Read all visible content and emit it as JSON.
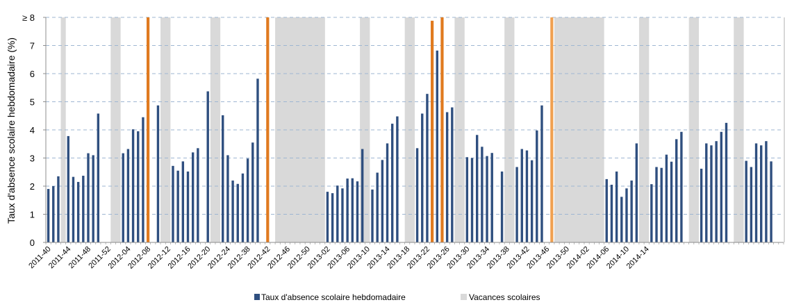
{
  "chart_data": {
    "type": "bar",
    "ylabel": "Taux d'absence scolaire hebdomadaire (%)",
    "ylim": [
      0,
      8
    ],
    "yticks": [
      "0",
      "1",
      "2",
      "3",
      "4",
      "5",
      "6",
      "7",
      "≥ 8"
    ],
    "grid": true,
    "legend_position": "bottom",
    "legend": {
      "rate": "Taux d'absence scolaire hebdomadaire",
      "vacation": "Vacances scolaires"
    },
    "x_labels": [
      "2011-40",
      "2011-44",
      "2011-48",
      "2011-52",
      "2012-04",
      "2012-08",
      "2012-12",
      "2012-16",
      "2012-20",
      "2012-24",
      "2012-38",
      "2012-42",
      "2012-46",
      "2012-50",
      "2013-02",
      "2013-06",
      "2013-10",
      "2013-14",
      "2013-18",
      "2013-22",
      "2013-26",
      "2013-30",
      "2013-34",
      "2013-38",
      "2013-42",
      "2013-46",
      "2013-50",
      "2014-02",
      "2014-06",
      "2014-10",
      "2014-14"
    ],
    "colors": {
      "rate": "#2F4F7F",
      "vacation": "#D9D9D9",
      "highlight": "#E07A1F",
      "highlight_light": "#F0A050",
      "grid": "#9EB6D2"
    },
    "vacation_spans": [
      [
        3,
        3
      ],
      [
        13,
        14
      ],
      [
        23,
        24
      ],
      [
        33,
        34
      ],
      [
        46,
        55
      ],
      [
        63,
        64
      ],
      [
        72,
        73
      ],
      [
        82,
        83
      ],
      [
        92,
        93
      ],
      [
        102,
        111
      ],
      [
        119,
        120
      ],
      [
        129,
        130
      ],
      [
        138,
        139
      ],
      [
        148,
        149
      ]
    ],
    "bars": [
      {
        "i": 0,
        "v": 1.9
      },
      {
        "i": 1,
        "v": 2.0
      },
      {
        "i": 2,
        "v": 2.35
      },
      {
        "i": 4,
        "v": 3.78
      },
      {
        "i": 5,
        "v": 2.33
      },
      {
        "i": 6,
        "v": 2.15
      },
      {
        "i": 7,
        "v": 2.37
      },
      {
        "i": 8,
        "v": 3.17
      },
      {
        "i": 9,
        "v": 3.1
      },
      {
        "i": 10,
        "v": 4.58
      },
      {
        "i": 15,
        "v": 3.17
      },
      {
        "i": 16,
        "v": 3.32
      },
      {
        "i": 17,
        "v": 4.02
      },
      {
        "i": 18,
        "v": 3.95
      },
      {
        "i": 19,
        "v": 4.45
      },
      {
        "i": 20,
        "v": 8,
        "c": "highlight"
      },
      {
        "i": 22,
        "v": 4.87
      },
      {
        "i": 25,
        "v": 2.72
      },
      {
        "i": 26,
        "v": 2.55
      },
      {
        "i": 27,
        "v": 2.88
      },
      {
        "i": 28,
        "v": 2.52
      },
      {
        "i": 29,
        "v": 3.2
      },
      {
        "i": 30,
        "v": 3.35
      },
      {
        "i": 32,
        "v": 5.37
      },
      {
        "i": 35,
        "v": 4.52
      },
      {
        "i": 36,
        "v": 3.1
      },
      {
        "i": 37,
        "v": 2.2
      },
      {
        "i": 38,
        "v": 2.08
      },
      {
        "i": 39,
        "v": 2.45
      },
      {
        "i": 40,
        "v": 2.98
      },
      {
        "i": 41,
        "v": 3.55
      },
      {
        "i": 42,
        "v": 5.82
      },
      {
        "i": 44,
        "v": 8,
        "c": "highlight"
      },
      {
        "i": 56,
        "v": 1.8
      },
      {
        "i": 57,
        "v": 1.75
      },
      {
        "i": 58,
        "v": 2.02
      },
      {
        "i": 59,
        "v": 1.92
      },
      {
        "i": 60,
        "v": 2.27
      },
      {
        "i": 61,
        "v": 2.28
      },
      {
        "i": 62,
        "v": 2.17
      },
      {
        "i": 63,
        "v": 3.32
      },
      {
        "i": 65,
        "v": 1.88
      },
      {
        "i": 66,
        "v": 2.48
      },
      {
        "i": 67,
        "v": 2.93
      },
      {
        "i": 68,
        "v": 3.52
      },
      {
        "i": 69,
        "v": 4.22
      },
      {
        "i": 70,
        "v": 4.48
      },
      {
        "i": 74,
        "v": 3.35
      },
      {
        "i": 75,
        "v": 4.58
      },
      {
        "i": 76,
        "v": 5.28
      },
      {
        "i": 77,
        "v": 7.88,
        "c": "highlight"
      },
      {
        "i": 78,
        "v": 6.82
      },
      {
        "i": 79,
        "v": 8,
        "c": "highlight"
      },
      {
        "i": 80,
        "v": 4.63
      },
      {
        "i": 81,
        "v": 4.8
      },
      {
        "i": 84,
        "v": 3.03
      },
      {
        "i": 85,
        "v": 3.0
      },
      {
        "i": 86,
        "v": 3.82
      },
      {
        "i": 87,
        "v": 3.4
      },
      {
        "i": 88,
        "v": 3.07
      },
      {
        "i": 89,
        "v": 3.18
      },
      {
        "i": 91,
        "v": 2.52
      },
      {
        "i": 94,
        "v": 2.68
      },
      {
        "i": 95,
        "v": 3.32
      },
      {
        "i": 96,
        "v": 3.27
      },
      {
        "i": 97,
        "v": 2.92
      },
      {
        "i": 98,
        "v": 3.98
      },
      {
        "i": 99,
        "v": 4.87
      },
      {
        "i": 101,
        "v": 8,
        "c": "highlight_light"
      },
      {
        "i": 112,
        "v": 2.25
      },
      {
        "i": 113,
        "v": 2.05
      },
      {
        "i": 114,
        "v": 2.52
      },
      {
        "i": 115,
        "v": 1.62
      },
      {
        "i": 116,
        "v": 1.92
      },
      {
        "i": 117,
        "v": 2.2
      },
      {
        "i": 118,
        "v": 3.52
      },
      {
        "i": 121,
        "v": 2.07
      },
      {
        "i": 122,
        "v": 2.68
      },
      {
        "i": 123,
        "v": 2.65
      },
      {
        "i": 124,
        "v": 3.12
      },
      {
        "i": 125,
        "v": 2.87
      },
      {
        "i": 126,
        "v": 3.67
      },
      {
        "i": 127,
        "v": 3.93
      },
      {
        "i": 131,
        "v": 2.62
      },
      {
        "i": 132,
        "v": 3.52
      },
      {
        "i": 133,
        "v": 3.45
      },
      {
        "i": 134,
        "v": 3.6
      },
      {
        "i": 135,
        "v": 3.93
      },
      {
        "i": 136,
        "v": 4.25
      },
      {
        "i": 140,
        "v": 2.9
      },
      {
        "i": 141,
        "v": 2.68
      },
      {
        "i": 142,
        "v": 3.52
      },
      {
        "i": 143,
        "v": 3.45
      },
      {
        "i": 144,
        "v": 3.6
      },
      {
        "i": 145,
        "v": 2.88
      }
    ]
  }
}
